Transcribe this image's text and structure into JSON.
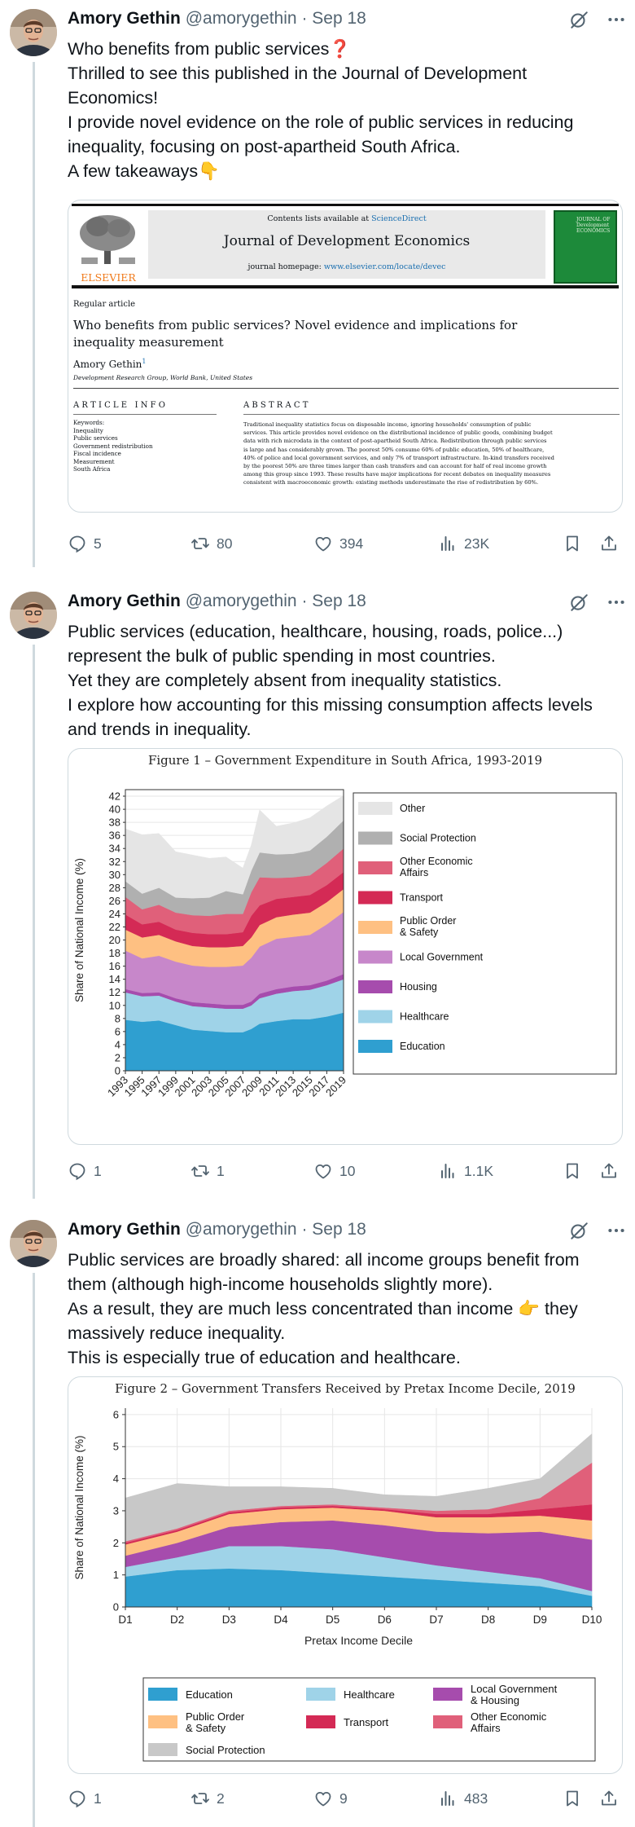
{
  "tweets": [
    {
      "author": {
        "name": "Amory Gethin",
        "handle": "@amorygethin",
        "date": "Sep 18"
      },
      "lines": [
        "Who benefits from public services❓",
        "Thrilled to see this published in the Journal of Development",
        "Economics!",
        "I provide novel evidence on the role of public services in reducing",
        "inequality, focusing on post-apartheid South Africa.",
        "A few takeaways👇"
      ],
      "stats": {
        "replies": "5",
        "reposts": "80",
        "likes": "394",
        "views": "23K"
      }
    },
    {
      "author": {
        "name": "Amory Gethin",
        "handle": "@amorygethin",
        "date": "Sep 18"
      },
      "lines": [
        "Public services (education, healthcare, housing, roads, police...)",
        "represent the bulk of public spending in most countries.",
        "Yet they are completely absent from inequality statistics.",
        "I explore how accounting for this missing consumption affects levels",
        "and trends in inequality."
      ],
      "stats": {
        "replies": "1",
        "reposts": "1",
        "likes": "10",
        "views": "1.1K"
      }
    },
    {
      "author": {
        "name": "Amory Gethin",
        "handle": "@amorygethin",
        "date": "Sep 18"
      },
      "lines": [
        "Public services are broadly shared: all income groups benefit from",
        "them (although high-income households slightly more).",
        "As a result, they are much less concentrated than income 👉 they",
        "massively reduce inequality.",
        "This is especially true of education and healthcare."
      ],
      "stats": {
        "replies": "1",
        "reposts": "2",
        "likes": "9",
        "views": "483"
      }
    }
  ],
  "paper": {
    "contents_prefix": "Contents lists available at",
    "contents_link": "ScienceDirect",
    "journal": "Journal of Development Economics",
    "homepage_prefix": "journal homepage:",
    "homepage_link": "www.elsevier.com/locate/devec",
    "publisher": "ELSEVIER",
    "cover_text": "JOURNAL OF Development ECONOMICS",
    "article_type": "Regular article",
    "title_line1": "Who benefits from public services? Novel evidence and implications for",
    "title_line2": "inequality measurement",
    "author": "Amory Gethin",
    "author_mark": "1",
    "affiliation": "Development Research Group, World Bank, United States",
    "info_heading": "A R T I C L E   I N F O",
    "keywords_label": "Keywords:",
    "keywords": [
      "Inequality",
      "Public services",
      "Government redistribution",
      "Fiscal incidence",
      "Measurement",
      "South Africa"
    ],
    "abstract_heading": "A B S T R A C T",
    "abstract_lines": [
      "Traditional inequality statistics focus on disposable income, ignoring households' consumption of public",
      "services. This article provides novel evidence on the distributional incidence of public goods, combining budget",
      "data with rich microdata in the context of post-apartheid South Africa. Redistribution through public services",
      "is large and has considerably grown. The poorest 50% consume 60% of public education, 50% of healthcare,",
      "40% of police and local government services, and only 7% of transport infrastructure. In-kind transfers received",
      "by the poorest 50% are three times larger than cash transfers and can account for half of real income growth",
      "among this group since 1993. These results have major implications for recent debates on inequality measures",
      "consistent with macroeconomic growth: existing methods underestimate the rise of redistribution by 60%."
    ]
  },
  "figure1": {
    "title": "Figure 1 – Government Expenditure in South Africa, 1993-2019",
    "chart_data": {
      "type": "area",
      "title": "Figure 1 – Government Expenditure in South Africa, 1993-2019",
      "xlabel": "",
      "ylabel": "Share of National Income (%)",
      "ylim": [
        0,
        43
      ],
      "yticks": [
        0,
        2,
        4,
        6,
        8,
        10,
        12,
        14,
        16,
        18,
        20,
        22,
        24,
        26,
        28,
        30,
        32,
        34,
        36,
        38,
        40,
        42
      ],
      "xticks": [
        "1993",
        "1995",
        "1997",
        "1999",
        "2001",
        "2003",
        "2005",
        "2007",
        "2009",
        "2011",
        "2013",
        "2015",
        "2017",
        "2019"
      ],
      "x": [
        1993,
        1995,
        1997,
        1999,
        2001,
        2003,
        2005,
        2007,
        2008,
        2009,
        2011,
        2013,
        2015,
        2017,
        2019
      ],
      "stacked": true,
      "series": [
        {
          "name": "Education",
          "color": "#2f9fd0",
          "values": [
            7.8,
            7.5,
            7.7,
            7.0,
            6.3,
            6.1,
            5.9,
            5.9,
            6.4,
            7.2,
            7.6,
            7.9,
            7.9,
            8.3,
            8.9
          ]
        },
        {
          "name": "Healthcare",
          "color": "#9fd3e8",
          "values": [
            4.2,
            3.9,
            3.8,
            3.6,
            3.6,
            3.6,
            3.6,
            3.6,
            3.6,
            3.9,
            4.2,
            4.3,
            4.5,
            4.8,
            5.1
          ]
        },
        {
          "name": "Housing",
          "color": "#a64cad",
          "values": [
            0.5,
            0.5,
            0.5,
            0.5,
            0.6,
            0.6,
            0.6,
            0.6,
            0.6,
            0.7,
            0.7,
            0.7,
            0.7,
            0.7,
            0.8
          ]
        },
        {
          "name": "Local Government",
          "color": "#c787ca",
          "values": [
            5.9,
            5.3,
            5.6,
            5.6,
            5.6,
            5.6,
            5.8,
            6.0,
            6.7,
            7.2,
            7.7,
            7.6,
            7.7,
            8.6,
            9.5
          ]
        },
        {
          "name": "Public Order & Safety",
          "color": "#fec082",
          "values": [
            3.2,
            3.2,
            3.2,
            3.1,
            3.0,
            3.0,
            3.0,
            3.0,
            3.1,
            3.3,
            3.3,
            3.4,
            3.4,
            3.4,
            3.5
          ]
        },
        {
          "name": "Transport",
          "color": "#d42a55",
          "values": [
            2.3,
            2.0,
            2.0,
            1.8,
            2.0,
            2.0,
            2.0,
            2.1,
            3.3,
            3.0,
            2.8,
            2.7,
            2.7,
            2.6,
            2.6
          ]
        },
        {
          "name": "Other Economic Affairs",
          "color": "#e0607a",
          "values": [
            2.7,
            2.3,
            2.6,
            2.6,
            2.7,
            2.8,
            3.1,
            2.8,
            3.6,
            4.3,
            3.2,
            3.0,
            3.0,
            3.4,
            3.6
          ]
        },
        {
          "name": "Social Protection",
          "color": "#b0b0b0",
          "values": [
            2.4,
            2.4,
            2.6,
            2.3,
            2.6,
            2.8,
            3.5,
            3.0,
            3.3,
            3.8,
            3.6,
            3.6,
            3.8,
            4.0,
            4.3
          ]
        },
        {
          "name": "Other",
          "color": "#e5e5e5",
          "values": [
            8.0,
            9.0,
            8.3,
            7.0,
            6.6,
            6.0,
            5.2,
            4.0,
            3.9,
            6.5,
            4.3,
            4.7,
            5.0,
            4.7,
            3.8
          ]
        }
      ],
      "legend": [
        "Other",
        "Social Protection",
        "Other Economic Affairs",
        "Transport",
        "Public Order & Safety",
        "Local Government",
        "Housing",
        "Healthcare",
        "Education"
      ],
      "legend_position": "right",
      "grid": true
    }
  },
  "figure2": {
    "title": "Figure 2 – Government Transfers Received by Pretax Income Decile, 2019",
    "chart_data": {
      "type": "area",
      "title": "Figure 2 – Government Transfers Received by Pretax Income Decile, 2019",
      "xlabel": "Pretax Income Decile",
      "ylabel": "Share of National Income (%)",
      "ylim": [
        0,
        6.2
      ],
      "yticks": [
        0,
        1,
        2,
        3,
        4,
        5,
        6
      ],
      "categories": [
        "D1",
        "D2",
        "D3",
        "D4",
        "D5",
        "D6",
        "D7",
        "D8",
        "D9",
        "D10"
      ],
      "stacked": true,
      "series": [
        {
          "name": "Education",
          "color": "#2f9fd0",
          "values": [
            0.95,
            1.15,
            1.2,
            1.15,
            1.05,
            0.95,
            0.85,
            0.75,
            0.65,
            0.35
          ]
        },
        {
          "name": "Healthcare",
          "color": "#9fd3e8",
          "values": [
            0.3,
            0.4,
            0.7,
            0.75,
            0.75,
            0.6,
            0.45,
            0.35,
            0.25,
            0.15
          ]
        },
        {
          "name": "Local Government & Housing",
          "color": "#a64cad",
          "values": [
            0.35,
            0.45,
            0.6,
            0.75,
            0.9,
            1.0,
            1.05,
            1.2,
            1.45,
            1.6
          ]
        },
        {
          "name": "Public Order & Safety",
          "color": "#fec082",
          "values": [
            0.35,
            0.35,
            0.4,
            0.4,
            0.4,
            0.45,
            0.45,
            0.5,
            0.5,
            0.6
          ]
        },
        {
          "name": "Transport",
          "color": "#d42a55",
          "values": [
            0.05,
            0.05,
            0.05,
            0.05,
            0.05,
            0.05,
            0.1,
            0.1,
            0.2,
            0.5
          ]
        },
        {
          "name": "Other Economic Affairs",
          "color": "#e0607a",
          "values": [
            0.05,
            0.05,
            0.05,
            0.05,
            0.05,
            0.05,
            0.1,
            0.15,
            0.35,
            1.3
          ]
        },
        {
          "name": "Social Protection",
          "color": "#c8c8c8",
          "values": [
            1.35,
            1.4,
            0.75,
            0.6,
            0.5,
            0.4,
            0.45,
            0.65,
            0.6,
            0.9
          ]
        }
      ],
      "legend": [
        "Education",
        "Healthcare",
        "Local Government & Housing",
        "Public Order & Safety",
        "Transport",
        "Other Economic Affairs",
        "Social Protection"
      ],
      "legend_position": "bottom",
      "grid": true
    }
  }
}
